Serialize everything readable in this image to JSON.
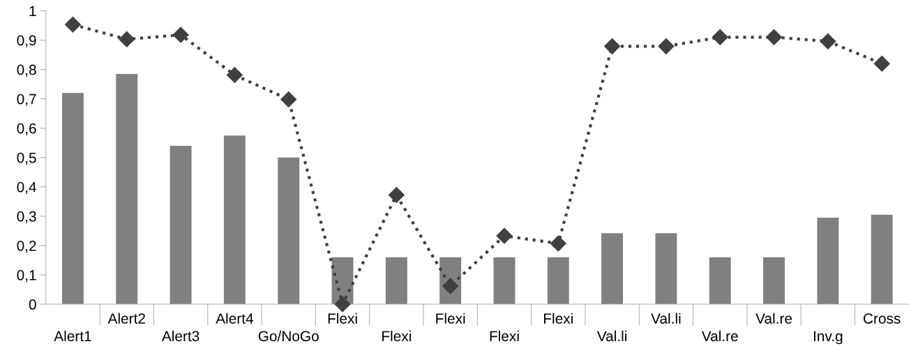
{
  "chart_data": {
    "type": "bar",
    "categories": [
      "Alert1",
      "Alert2",
      "Alert3",
      "Alert4",
      "Go/NoGo",
      "Flexi",
      "Flexi",
      "Flexi",
      "Flexi",
      "Flexi",
      "Val.li",
      "Val.li",
      "Val.re",
      "Val.re",
      "Inv.g",
      "Cross"
    ],
    "series": [
      {
        "color": "#808080",
        "values": [
          0.72,
          0.785,
          0.54,
          0.575,
          0.5,
          0.16,
          0.16,
          0.16,
          0.16,
          0.16,
          0.242,
          0.242,
          0.16,
          0.16,
          0.295,
          0.305
        ]
      },
      {
        "type": "line",
        "color": "#404040",
        "marker": "diamond",
        "line_style": "dotted",
        "values": [
          0.953,
          0.903,
          0.918,
          0.781,
          0.698,
          0.0,
          0.372,
          0.062,
          0.233,
          0.207,
          0.879,
          0.879,
          0.91,
          0.91,
          0.896,
          0.82
        ]
      }
    ],
    "ylim": [
      0,
      1
    ],
    "yticks": [
      0,
      {
        "value": 0.1,
        "label": "0,1"
      },
      {
        "value": 0.2,
        "label": "0,2"
      },
      {
        "value": 0.3,
        "label": "0,3"
      },
      {
        "value": 0.4,
        "label": "0,4"
      },
      {
        "value": 0.5,
        "label": "0,5"
      },
      {
        "value": 0.6,
        "label": "0,6"
      },
      {
        "value": 0.7,
        "label": "0,7"
      },
      {
        "value": 0.8,
        "label": "0,8"
      },
      {
        "value": 0.9,
        "label": "0,9"
      },
      1
    ],
    "grid": false,
    "legend": false
  }
}
